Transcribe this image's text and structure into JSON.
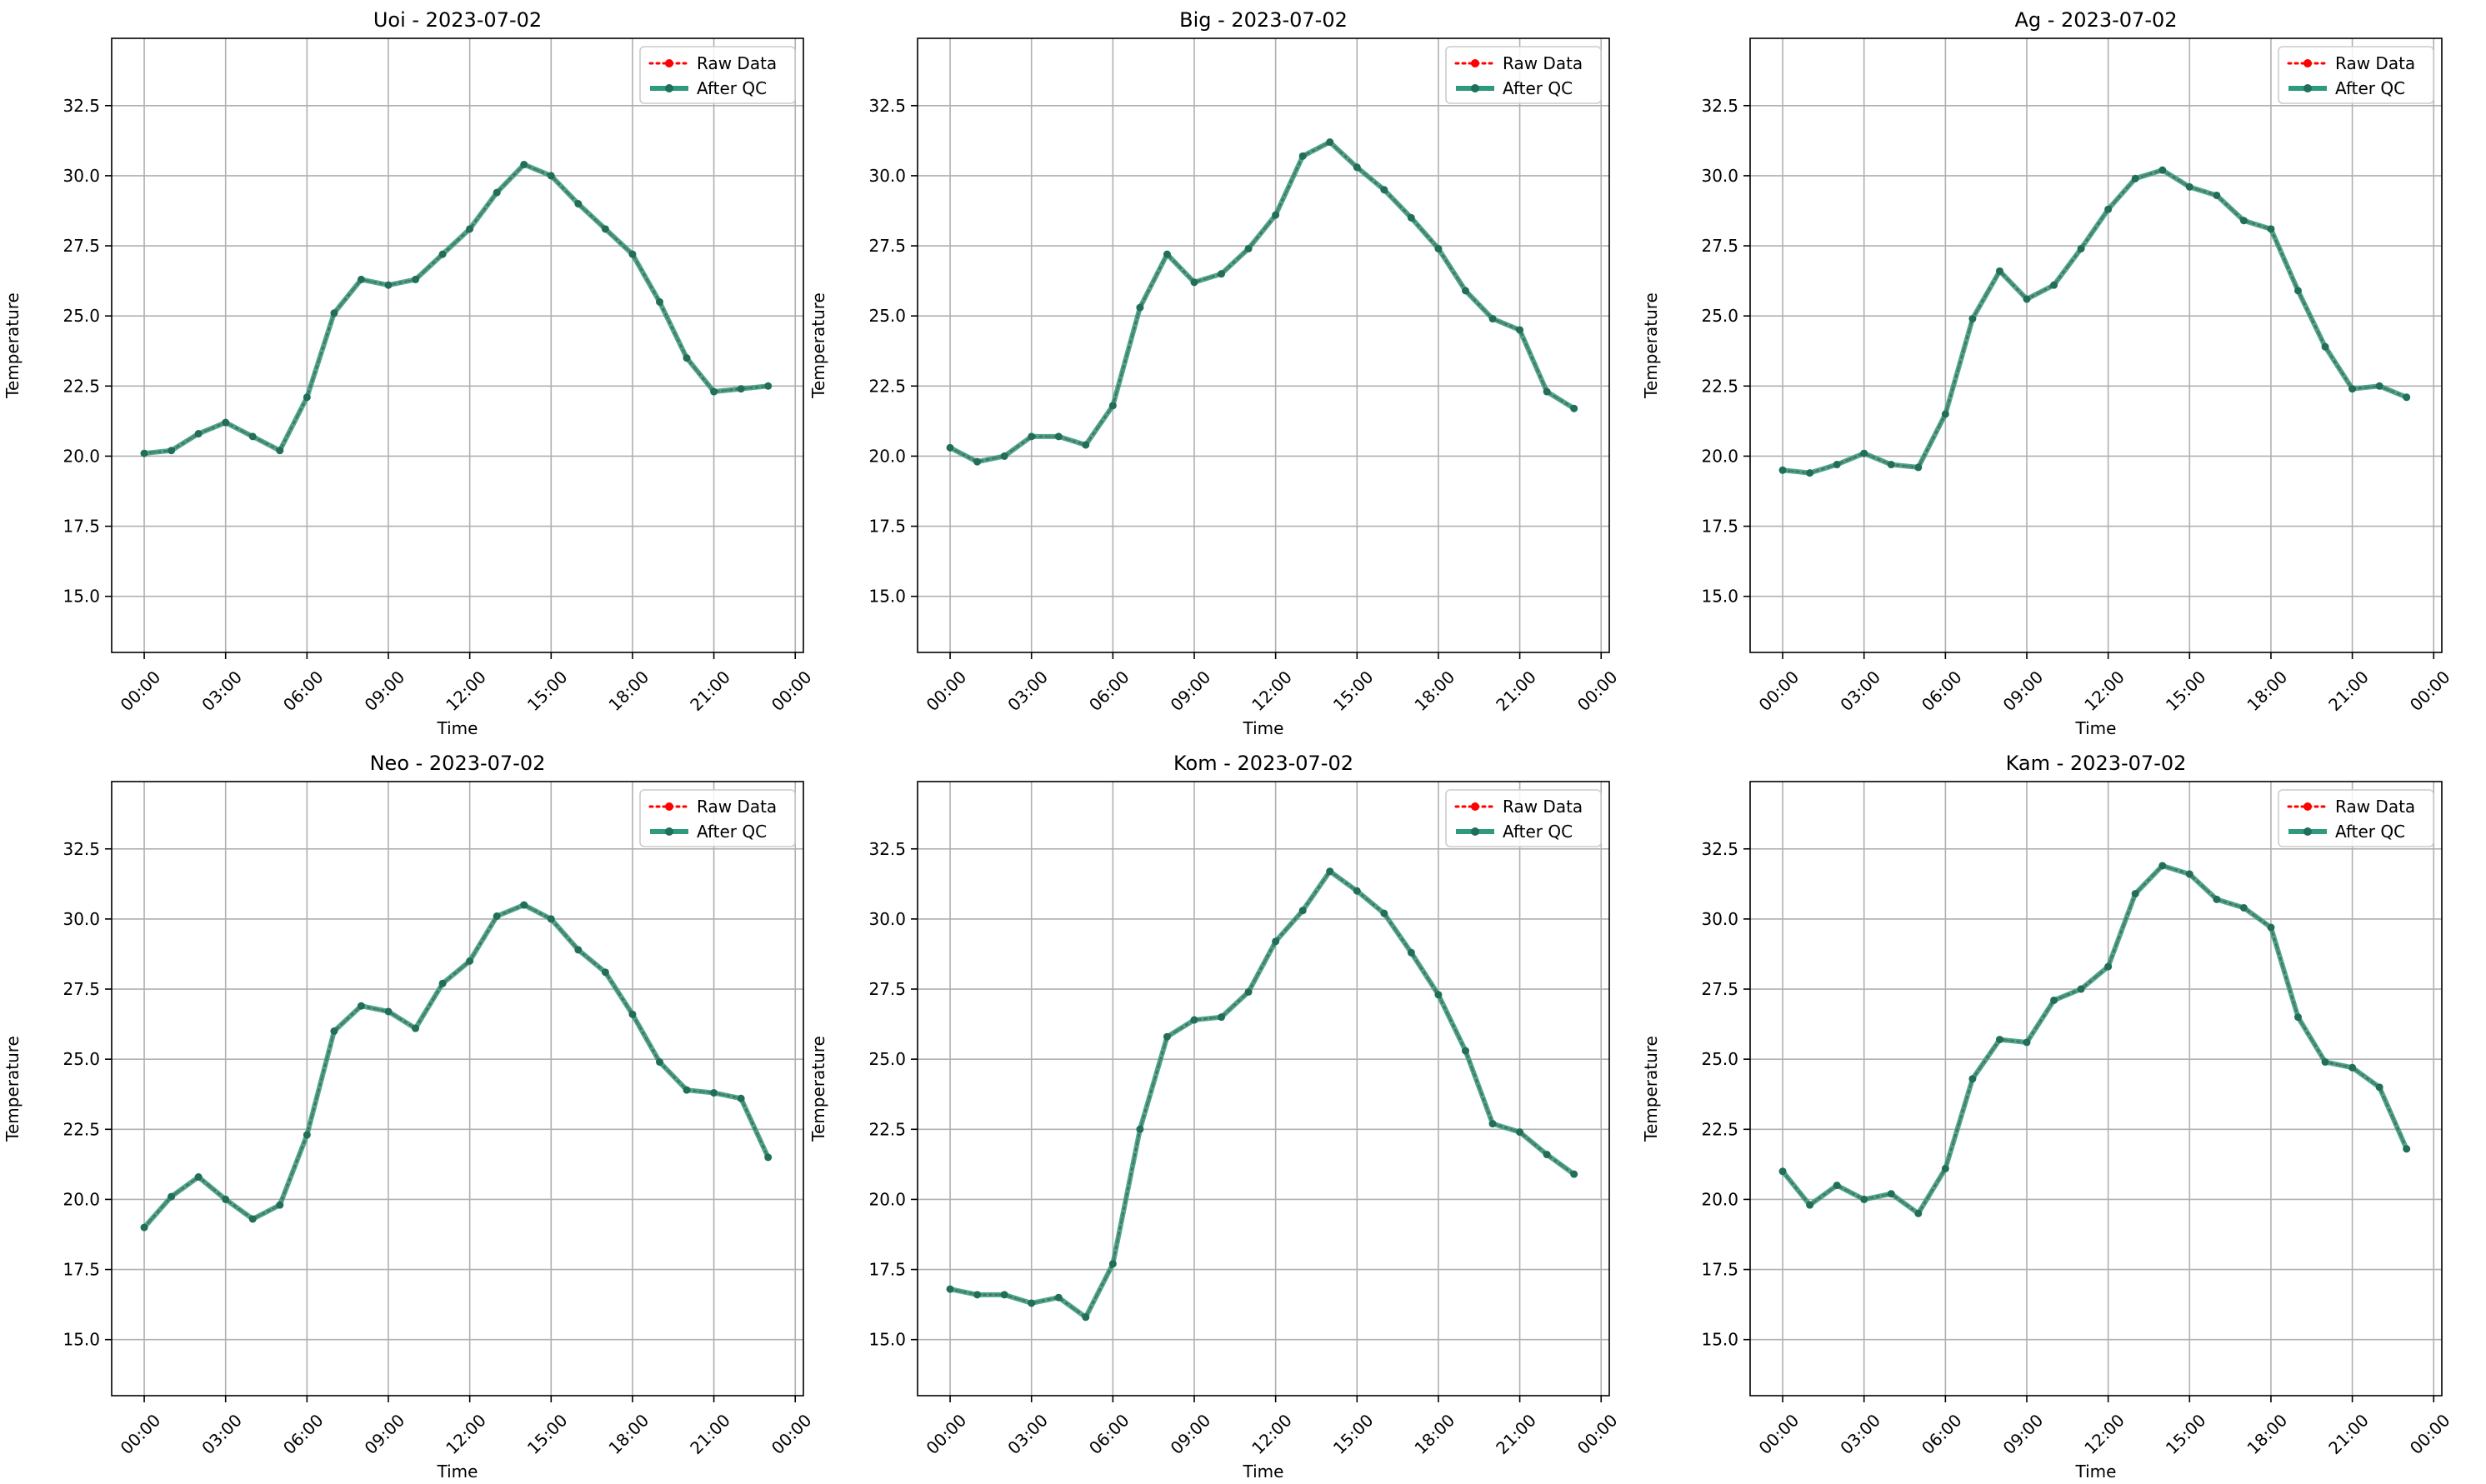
{
  "figure": {
    "colors": {
      "raw": "#ff0000",
      "qc": "#2e9a7e",
      "qc_marker": "#1f6f5a",
      "grid": "#b0b0b0",
      "axis": "#000000"
    },
    "legend": {
      "raw_label": "Raw Data",
      "qc_label": "After QC"
    }
  },
  "chart_data": [
    {
      "type": "line",
      "title": "Uoi - 2023-07-02",
      "xlabel": "Time",
      "ylabel": "Temperature",
      "xticks": [
        "00:00",
        "03:00",
        "06:00",
        "09:00",
        "12:00",
        "15:00",
        "18:00",
        "21:00",
        "00:00"
      ],
      "yticks": [
        "15.0",
        "17.5",
        "20.0",
        "22.5",
        "25.0",
        "27.5",
        "30.0",
        "32.5"
      ],
      "xlim": [
        -1.2,
        24.3
      ],
      "ylim": [
        13.0,
        34.9
      ],
      "grid": true,
      "legend_position": "top-right",
      "x": [
        0,
        1,
        2,
        3,
        4,
        5,
        6,
        7,
        8,
        9,
        10,
        11,
        12,
        13,
        14,
        15,
        16,
        17,
        18,
        19,
        20,
        21,
        22,
        23
      ],
      "series": [
        {
          "name": "Raw Data",
          "values": [
            20.1,
            20.2,
            20.8,
            21.2,
            20.7,
            20.2,
            22.1,
            25.1,
            26.3,
            26.1,
            26.3,
            27.2,
            28.1,
            29.4,
            30.4,
            30.0,
            29.0,
            28.1,
            27.2,
            25.5,
            23.5,
            22.3,
            22.4,
            22.5
          ]
        },
        {
          "name": "After QC",
          "values": [
            20.1,
            20.2,
            20.8,
            21.2,
            20.7,
            20.2,
            22.1,
            25.1,
            26.3,
            26.1,
            26.3,
            27.2,
            28.1,
            29.4,
            30.4,
            30.0,
            29.0,
            28.1,
            27.2,
            25.5,
            23.5,
            22.3,
            22.4,
            22.5
          ]
        }
      ]
    },
    {
      "type": "line",
      "title": "Big - 2023-07-02",
      "xlabel": "Time",
      "ylabel": "Temperature",
      "xticks": [
        "00:00",
        "03:00",
        "06:00",
        "09:00",
        "12:00",
        "15:00",
        "18:00",
        "21:00",
        "00:00"
      ],
      "yticks": [
        "15.0",
        "17.5",
        "20.0",
        "22.5",
        "25.0",
        "27.5",
        "30.0",
        "32.5"
      ],
      "xlim": [
        -1.2,
        24.3
      ],
      "ylim": [
        13.0,
        34.9
      ],
      "grid": true,
      "legend_position": "top-right",
      "x": [
        0,
        1,
        2,
        3,
        4,
        5,
        6,
        7,
        8,
        9,
        10,
        11,
        12,
        13,
        14,
        15,
        16,
        17,
        18,
        19,
        20,
        21,
        22,
        23
      ],
      "series": [
        {
          "name": "Raw Data",
          "values": [
            20.3,
            19.8,
            20.0,
            20.7,
            20.7,
            20.4,
            21.8,
            25.3,
            27.2,
            26.2,
            26.5,
            27.4,
            28.6,
            30.7,
            31.2,
            30.3,
            29.5,
            28.5,
            27.4,
            25.9,
            24.9,
            24.5,
            22.3,
            21.7
          ]
        },
        {
          "name": "After QC",
          "values": [
            20.3,
            19.8,
            20.0,
            20.7,
            20.7,
            20.4,
            21.8,
            25.3,
            27.2,
            26.2,
            26.5,
            27.4,
            28.6,
            30.7,
            31.2,
            30.3,
            29.5,
            28.5,
            27.4,
            25.9,
            24.9,
            24.5,
            22.3,
            21.7
          ]
        }
      ]
    },
    {
      "type": "line",
      "title": "Ag - 2023-07-02",
      "xlabel": "Time",
      "ylabel": "Temperature",
      "xticks": [
        "00:00",
        "03:00",
        "06:00",
        "09:00",
        "12:00",
        "15:00",
        "18:00",
        "21:00",
        "00:00"
      ],
      "yticks": [
        "15.0",
        "17.5",
        "20.0",
        "22.5",
        "25.0",
        "27.5",
        "30.0",
        "32.5"
      ],
      "xlim": [
        -1.2,
        24.3
      ],
      "ylim": [
        13.0,
        34.9
      ],
      "grid": true,
      "legend_position": "top-right",
      "x": [
        0,
        1,
        2,
        3,
        4,
        5,
        6,
        7,
        8,
        9,
        10,
        11,
        12,
        13,
        14,
        15,
        16,
        17,
        18,
        19,
        20,
        21,
        22,
        23
      ],
      "series": [
        {
          "name": "Raw Data",
          "values": [
            19.5,
            19.4,
            19.7,
            20.1,
            19.7,
            19.6,
            21.5,
            24.9,
            26.6,
            25.6,
            26.1,
            27.4,
            28.8,
            29.9,
            30.2,
            29.6,
            29.3,
            28.4,
            28.1,
            25.9,
            23.9,
            22.4,
            22.5,
            22.1
          ]
        },
        {
          "name": "After QC",
          "values": [
            19.5,
            19.4,
            19.7,
            20.1,
            19.7,
            19.6,
            21.5,
            24.9,
            26.6,
            25.6,
            26.1,
            27.4,
            28.8,
            29.9,
            30.2,
            29.6,
            29.3,
            28.4,
            28.1,
            25.9,
            23.9,
            22.4,
            22.5,
            22.1
          ]
        }
      ]
    },
    {
      "type": "line",
      "title": "Neo - 2023-07-02",
      "xlabel": "Time",
      "ylabel": "Temperature",
      "xticks": [
        "00:00",
        "03:00",
        "06:00",
        "09:00",
        "12:00",
        "15:00",
        "18:00",
        "21:00",
        "00:00"
      ],
      "yticks": [
        "15.0",
        "17.5",
        "20.0",
        "22.5",
        "25.0",
        "27.5",
        "30.0",
        "32.5"
      ],
      "xlim": [
        -1.2,
        24.3
      ],
      "ylim": [
        13.0,
        34.9
      ],
      "grid": true,
      "legend_position": "top-right",
      "x": [
        0,
        1,
        2,
        3,
        4,
        5,
        6,
        7,
        8,
        9,
        10,
        11,
        12,
        13,
        14,
        15,
        16,
        17,
        18,
        19,
        20,
        21,
        22,
        23
      ],
      "series": [
        {
          "name": "Raw Data",
          "values": [
            19.0,
            20.1,
            20.8,
            20.0,
            19.3,
            19.8,
            22.3,
            26.0,
            26.9,
            26.7,
            26.1,
            27.7,
            28.5,
            30.1,
            30.5,
            30.0,
            28.9,
            28.1,
            26.6,
            24.9,
            23.9,
            23.8,
            23.6,
            21.5
          ]
        },
        {
          "name": "After QC",
          "values": [
            19.0,
            20.1,
            20.8,
            20.0,
            19.3,
            19.8,
            22.3,
            26.0,
            26.9,
            26.7,
            26.1,
            27.7,
            28.5,
            30.1,
            30.5,
            30.0,
            28.9,
            28.1,
            26.6,
            24.9,
            23.9,
            23.8,
            23.6,
            21.5
          ]
        }
      ]
    },
    {
      "type": "line",
      "title": "Kom - 2023-07-02",
      "xlabel": "Time",
      "ylabel": "Temperature",
      "xticks": [
        "00:00",
        "03:00",
        "06:00",
        "09:00",
        "12:00",
        "15:00",
        "18:00",
        "21:00",
        "00:00"
      ],
      "yticks": [
        "15.0",
        "17.5",
        "20.0",
        "22.5",
        "25.0",
        "27.5",
        "30.0",
        "32.5"
      ],
      "xlim": [
        -1.2,
        24.3
      ],
      "ylim": [
        13.0,
        34.9
      ],
      "grid": true,
      "legend_position": "top-right",
      "x": [
        0,
        1,
        2,
        3,
        4,
        5,
        6,
        7,
        8,
        9,
        10,
        11,
        12,
        13,
        14,
        15,
        16,
        17,
        18,
        19,
        20,
        21,
        22,
        23
      ],
      "series": [
        {
          "name": "Raw Data",
          "values": [
            16.8,
            16.6,
            16.6,
            16.3,
            16.5,
            15.8,
            17.7,
            22.5,
            25.8,
            26.4,
            26.5,
            27.4,
            29.2,
            30.3,
            31.7,
            31.0,
            30.2,
            28.8,
            27.3,
            25.3,
            22.7,
            22.4,
            21.6,
            20.9
          ]
        },
        {
          "name": "After QC",
          "values": [
            16.8,
            16.6,
            16.6,
            16.3,
            16.5,
            15.8,
            17.7,
            22.5,
            25.8,
            26.4,
            26.5,
            27.4,
            29.2,
            30.3,
            31.7,
            31.0,
            30.2,
            28.8,
            27.3,
            25.3,
            22.7,
            22.4,
            21.6,
            20.9
          ]
        }
      ]
    },
    {
      "type": "line",
      "title": "Kam - 2023-07-02",
      "xlabel": "Time",
      "ylabel": "Temperature",
      "xticks": [
        "00:00",
        "03:00",
        "06:00",
        "09:00",
        "12:00",
        "15:00",
        "18:00",
        "21:00",
        "00:00"
      ],
      "yticks": [
        "15.0",
        "17.5",
        "20.0",
        "22.5",
        "25.0",
        "27.5",
        "30.0",
        "32.5"
      ],
      "xlim": [
        -1.2,
        24.3
      ],
      "ylim": [
        13.0,
        34.9
      ],
      "grid": true,
      "legend_position": "top-right",
      "x": [
        0,
        1,
        2,
        3,
        4,
        5,
        6,
        7,
        8,
        9,
        10,
        11,
        12,
        13,
        14,
        15,
        16,
        17,
        18,
        19,
        20,
        21,
        22,
        23
      ],
      "series": [
        {
          "name": "Raw Data",
          "values": [
            21.0,
            19.8,
            20.5,
            20.0,
            20.2,
            19.5,
            21.1,
            24.3,
            25.7,
            25.6,
            27.1,
            27.5,
            28.3,
            30.9,
            31.9,
            31.6,
            30.7,
            30.4,
            29.7,
            26.5,
            24.9,
            24.7,
            24.0,
            21.8
          ]
        },
        {
          "name": "After QC",
          "values": [
            21.0,
            19.8,
            20.5,
            20.0,
            20.2,
            19.5,
            21.1,
            24.3,
            25.7,
            25.6,
            27.1,
            27.5,
            28.3,
            30.9,
            31.9,
            31.6,
            30.7,
            30.4,
            29.7,
            26.5,
            24.9,
            24.7,
            24.0,
            21.8
          ]
        }
      ]
    }
  ]
}
